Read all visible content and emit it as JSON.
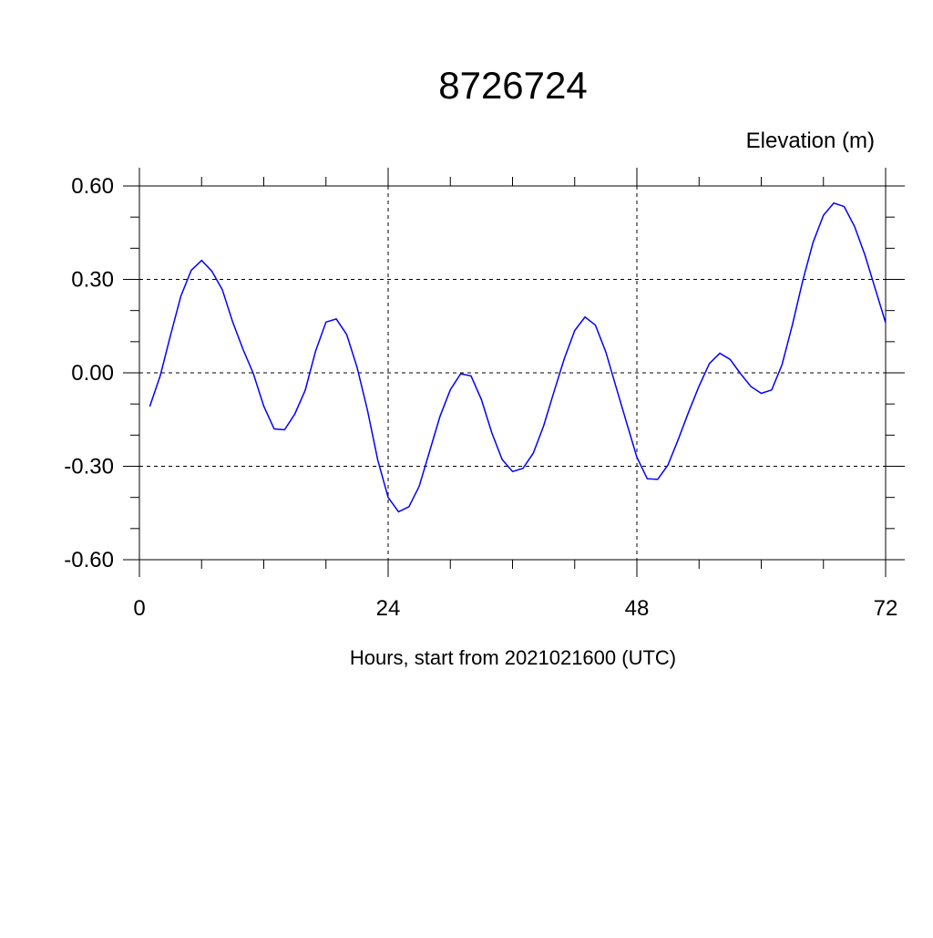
{
  "chart_data": {
    "type": "line",
    "title": "8726724",
    "ylabel": "Elevation (m)",
    "xlabel": "Hours, start from 2021021600 (UTC)",
    "xlim": [
      0,
      72
    ],
    "ylim": [
      -0.6,
      0.6
    ],
    "xticks": [
      0,
      24,
      48,
      72
    ],
    "xtick_labels": [
      "0",
      "24",
      "48",
      "72"
    ],
    "yticks": [
      0.6,
      0.3,
      0.0,
      -0.3,
      -0.6
    ],
    "ytick_labels": [
      "0.60",
      "0.30",
      "0.00",
      "-0.30",
      "-0.60"
    ],
    "grid": true,
    "series": [
      {
        "color": "#0000ff",
        "x": [
          1,
          2,
          3,
          4,
          5,
          6,
          7,
          8,
          9,
          10,
          11,
          12,
          13,
          14,
          15,
          16,
          17,
          18,
          19,
          20,
          21,
          22,
          23,
          24,
          25,
          26,
          27,
          28,
          29,
          30,
          31,
          32,
          33,
          34,
          35,
          36,
          37,
          38,
          39,
          40,
          41,
          42,
          43,
          44,
          45,
          46,
          47,
          48,
          49,
          50,
          51,
          52,
          53,
          54,
          55,
          56,
          57,
          58,
          59,
          60,
          61,
          62,
          63,
          64,
          65,
          66,
          67,
          68,
          69,
          70,
          71,
          72
        ],
        "values": [
          -0.108,
          -0.01,
          0.12,
          0.246,
          0.329,
          0.361,
          0.326,
          0.267,
          0.163,
          0.075,
          -0.003,
          -0.107,
          -0.18,
          -0.183,
          -0.132,
          -0.056,
          0.07,
          0.163,
          0.173,
          0.123,
          0.018,
          -0.12,
          -0.28,
          -0.4,
          -0.446,
          -0.43,
          -0.364,
          -0.252,
          -0.14,
          -0.054,
          -0.003,
          -0.01,
          -0.086,
          -0.193,
          -0.278,
          -0.317,
          -0.307,
          -0.258,
          -0.171,
          -0.061,
          0.046,
          0.136,
          0.179,
          0.153,
          0.067,
          -0.047,
          -0.159,
          -0.271,
          -0.34,
          -0.342,
          -0.296,
          -0.213,
          -0.125,
          -0.042,
          0.03,
          0.063,
          0.043,
          -0.003,
          -0.044,
          -0.066,
          -0.055,
          0.026,
          0.153,
          0.295,
          0.419,
          0.506,
          0.545,
          0.534,
          0.47,
          0.378,
          0.27,
          0.161
        ]
      }
    ]
  }
}
